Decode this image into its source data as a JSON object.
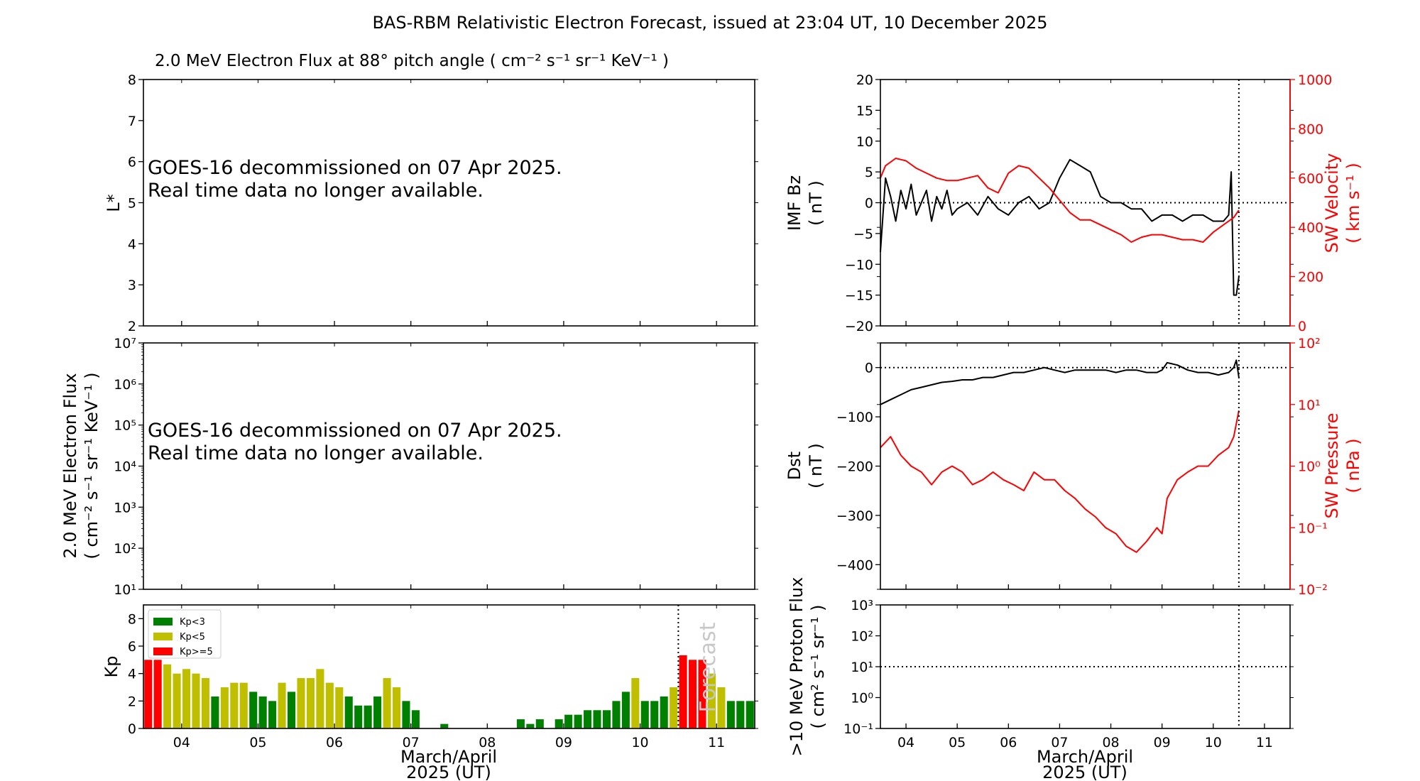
{
  "title": "BAS-RBM Relativistic Electron Forecast, issued at 23:04 UT, 10 December 2025",
  "colors": {
    "red": "#ff0000",
    "kp_green": "#008000",
    "kp_yellow": "#bfbf00",
    "kp_red": "#ff0000",
    "forecast_text": "#c8c8c8"
  },
  "chart_data": [
    {
      "id": "lstar",
      "type": "heatmap",
      "title": "2.0 MeV Electron Flux at 88° pitch angle ( cm⁻² s⁻¹ sr⁻¹ KeV⁻¹ )",
      "ylabel": "L*",
      "ylim": [
        2,
        8
      ],
      "yticks": [
        "2",
        "3",
        "4",
        "5",
        "6",
        "7",
        "8"
      ],
      "message": [
        "GOES-16 decommissioned on 07 Apr 2025.",
        "Real time data no longer available."
      ]
    },
    {
      "id": "eflux",
      "type": "line",
      "ylabel": [
        "2.0 MeV Electron Flux",
        "( cm⁻² s⁻¹ sr⁻¹ KeV⁻¹ )"
      ],
      "yscale": "log",
      "ylim": [
        10,
        10000000
      ],
      "yticks": [
        "10¹",
        "10²",
        "10³",
        "10⁴",
        "10⁵",
        "10⁶",
        "10⁷"
      ],
      "message": [
        "GOES-16 decommissioned on 07 Apr 2025.",
        "Real time data no longer available."
      ]
    },
    {
      "id": "kp",
      "type": "bar",
      "ylabel": "Kp",
      "ylim": [
        0,
        9
      ],
      "yticks": [
        "0",
        "2",
        "4",
        "6",
        "8"
      ],
      "xlabel": [
        "March/April",
        "2025 (UT)"
      ],
      "xticks": [
        "04",
        "05",
        "06",
        "07",
        "08",
        "09",
        "10",
        "11"
      ],
      "xlim": [
        3.5,
        11.5
      ],
      "legend": [
        "Kp<3",
        "Kp<5",
        "Kp>=5"
      ],
      "legend_loc": "upper-left",
      "forecast_label": "Forecast",
      "now": 10.5,
      "values": [
        5,
        5,
        4.67,
        4,
        4.33,
        4,
        3.67,
        2.33,
        3,
        3.33,
        3.33,
        2.67,
        2.33,
        2,
        3.33,
        2.67,
        3.67,
        3.67,
        4.33,
        3.33,
        3,
        2.33,
        1.67,
        1.67,
        2.33,
        3.67,
        3,
        2,
        1.33,
        0,
        0,
        0.33,
        0,
        0,
        0,
        0,
        0,
        0,
        0,
        0.67,
        0.33,
        0.67,
        0,
        0.67,
        1,
        1,
        1.33,
        1.33,
        1.33,
        2,
        2.67,
        3.67,
        2,
        2,
        2.33,
        3,
        5.33,
        5,
        5,
        4,
        3,
        2,
        2,
        2
      ]
    },
    {
      "id": "imf",
      "type": "line",
      "ylabel": [
        "IMF Bz",
        "( nT )"
      ],
      "ylim": [
        -20,
        20
      ],
      "yticks": [
        "−20",
        "−15",
        "−10",
        "−5",
        "0",
        "5",
        "10",
        "15",
        "20"
      ],
      "y2label": [
        "SW Velocity",
        "( km s⁻¹ )"
      ],
      "y2lim": [
        0,
        1000
      ],
      "y2ticks": [
        "0",
        "200",
        "400",
        "600",
        "800",
        "1000"
      ],
      "xlim": [
        3.5,
        11.5
      ],
      "now": 10.5,
      "series": [
        {
          "axis": "left",
          "color": "#000000",
          "x": [
            3.5,
            3.6,
            3.7,
            3.8,
            3.9,
            4.0,
            4.1,
            4.2,
            4.3,
            4.4,
            4.5,
            4.6,
            4.7,
            4.8,
            4.9,
            5.0,
            5.2,
            5.4,
            5.6,
            5.8,
            6.0,
            6.2,
            6.4,
            6.6,
            6.8,
            7.0,
            7.2,
            7.4,
            7.6,
            7.8,
            8.0,
            8.2,
            8.4,
            8.6,
            8.8,
            9.0,
            9.2,
            9.4,
            9.6,
            9.8,
            10.0,
            10.2,
            10.3,
            10.35,
            10.4,
            10.45,
            10.5
          ],
          "values": [
            -8,
            4,
            1,
            -3,
            2,
            -1,
            3,
            -2,
            0,
            2,
            -3,
            1,
            -1,
            2,
            -2,
            -1,
            0,
            -2,
            1,
            -1,
            -2,
            0,
            1,
            -1,
            0,
            4,
            7,
            6,
            5,
            1,
            0,
            0,
            -1,
            -1,
            -3,
            -2,
            -2,
            -3,
            -2,
            -2,
            -3,
            -3,
            -2,
            5,
            -15,
            -15,
            -12
          ]
        },
        {
          "axis": "right",
          "color": "#ff0000",
          "x": [
            3.5,
            3.6,
            3.8,
            4.0,
            4.2,
            4.4,
            4.6,
            4.8,
            5.0,
            5.2,
            5.4,
            5.6,
            5.8,
            6.0,
            6.2,
            6.4,
            6.6,
            6.8,
            7.0,
            7.2,
            7.4,
            7.6,
            7.8,
            8.0,
            8.2,
            8.4,
            8.6,
            8.8,
            9.0,
            9.2,
            9.4,
            9.6,
            9.8,
            10.0,
            10.2,
            10.4,
            10.5
          ],
          "values": [
            600,
            650,
            680,
            670,
            640,
            620,
            600,
            590,
            590,
            600,
            610,
            560,
            540,
            620,
            650,
            640,
            600,
            560,
            510,
            460,
            430,
            430,
            410,
            390,
            370,
            340,
            360,
            370,
            370,
            360,
            350,
            350,
            340,
            380,
            410,
            440,
            470
          ]
        }
      ]
    },
    {
      "id": "dst",
      "type": "line",
      "ylabel": [
        "Dst",
        "( nT )"
      ],
      "ylim": [
        -450,
        50
      ],
      "yticks": [
        "−400",
        "−300",
        "−200",
        "−100",
        "0"
      ],
      "y2label": [
        "SW Pressure",
        "( nPa )"
      ],
      "y2scale": "log",
      "y2lim": [
        0.01,
        100
      ],
      "y2ticks": [
        "10⁻²",
        "10⁻¹",
        "10⁰",
        "10¹",
        "10²"
      ],
      "xlim": [
        3.5,
        11.5
      ],
      "now": 10.5,
      "series": [
        {
          "axis": "left",
          "color": "#000000",
          "x": [
            3.5,
            3.7,
            3.9,
            4.1,
            4.3,
            4.5,
            4.7,
            4.9,
            5.1,
            5.3,
            5.5,
            5.7,
            5.9,
            6.1,
            6.3,
            6.5,
            6.7,
            6.9,
            7.1,
            7.3,
            7.5,
            7.7,
            7.9,
            8.1,
            8.3,
            8.5,
            8.7,
            8.9,
            9.0,
            9.1,
            9.3,
            9.5,
            9.7,
            9.9,
            10.1,
            10.3,
            10.4,
            10.45,
            10.5
          ],
          "values": [
            -75,
            -65,
            -55,
            -45,
            -40,
            -35,
            -30,
            -28,
            -25,
            -25,
            -20,
            -20,
            -15,
            -10,
            -10,
            -5,
            0,
            -5,
            -10,
            -5,
            -5,
            -5,
            -5,
            -10,
            -5,
            -5,
            -10,
            -10,
            -5,
            10,
            5,
            -5,
            -10,
            -10,
            -15,
            -10,
            0,
            15,
            -20
          ]
        },
        {
          "axis": "right",
          "color": "#ff0000",
          "x": [
            3.5,
            3.7,
            3.9,
            4.1,
            4.3,
            4.5,
            4.7,
            4.9,
            5.1,
            5.3,
            5.5,
            5.7,
            5.9,
            6.1,
            6.3,
            6.5,
            6.7,
            6.9,
            7.1,
            7.3,
            7.5,
            7.7,
            7.9,
            8.1,
            8.3,
            8.5,
            8.7,
            8.9,
            9.0,
            9.1,
            9.3,
            9.5,
            9.7,
            9.9,
            10.1,
            10.3,
            10.4,
            10.5
          ],
          "values": [
            2,
            3,
            1.5,
            1,
            0.8,
            0.5,
            0.8,
            1,
            0.8,
            0.5,
            0.6,
            0.8,
            0.6,
            0.5,
            0.4,
            0.8,
            0.6,
            0.6,
            0.4,
            0.3,
            0.2,
            0.15,
            0.1,
            0.08,
            0.05,
            0.04,
            0.06,
            0.1,
            0.08,
            0.3,
            0.6,
            0.8,
            1,
            1,
            1.5,
            2,
            3,
            8
          ]
        }
      ]
    },
    {
      "id": "proton",
      "type": "line",
      "ylabel": [
        ">10 MeV Proton Flux",
        "( cm² s⁻¹ sr⁻¹ )"
      ],
      "yscale": "log",
      "ylim": [
        0.1,
        1000
      ],
      "yticks": [
        "10⁻¹",
        "10⁰",
        "10¹",
        "10²",
        "10³"
      ],
      "threshold": 10,
      "xlabel": [
        "March/April",
        "2025 (UT)"
      ],
      "xticks": [
        "04",
        "05",
        "06",
        "07",
        "08",
        "09",
        "10",
        "11"
      ],
      "xlim": [
        3.5,
        11.5
      ],
      "now": 10.5
    }
  ]
}
